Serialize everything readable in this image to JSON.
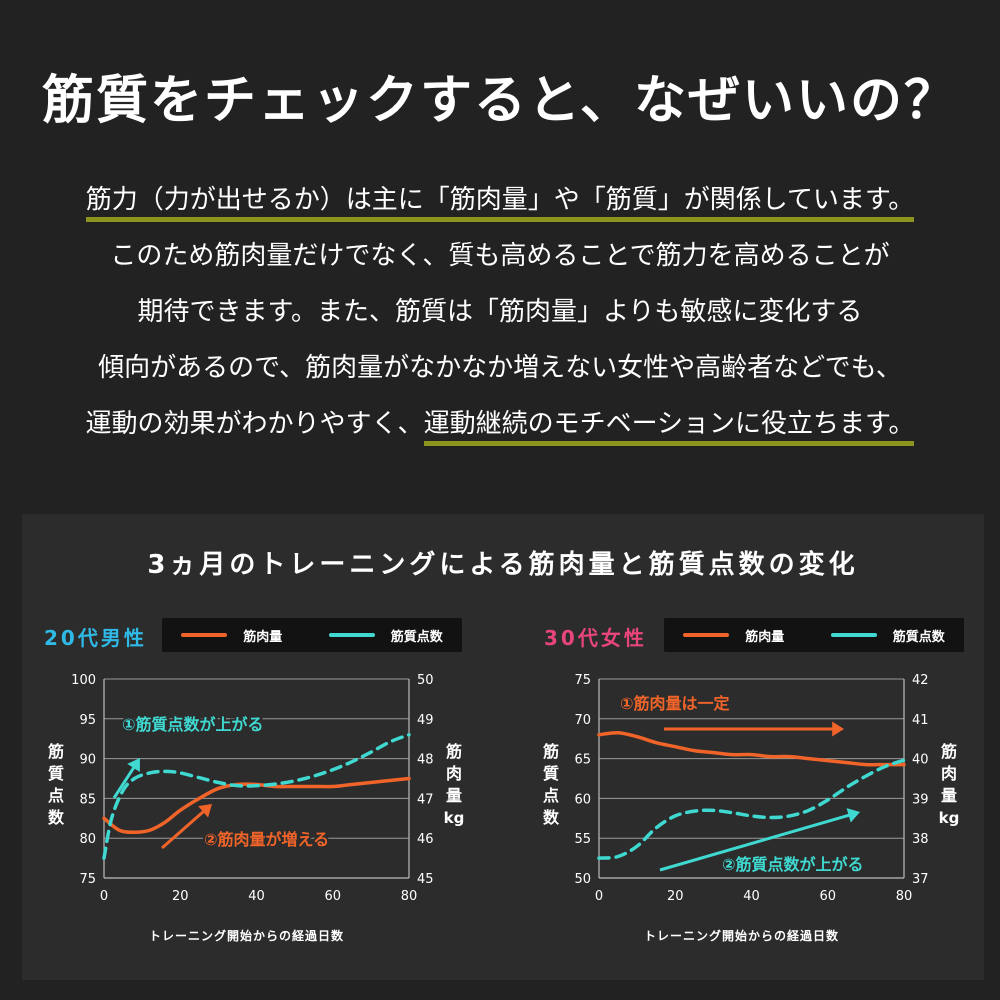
{
  "title": "筋質をチェックすると、なぜいいの？",
  "intro": {
    "line1_hl": "筋力（力が出せるか）は主に「筋肉量」や「筋質」が関係しています。",
    "line2": "このため筋肉量だけでなく、質も高めることで筋力を高めることが",
    "line3": "期待できます。また、筋質は「筋肉量」よりも敏感に変化する",
    "line4": "傾向があるので、筋肉量がなかなか増えない女性や高齢者などでも、",
    "line5_pre": "運動の効果がわかりやすく、",
    "line5_hl": "運動継続のモチベーションに役立ちます。"
  },
  "panel_title": "3ヵ月のトレーニングによる筋肉量と筋質点数の変化",
  "colors": {
    "muscle": "#f0642a",
    "quality": "#3fd9d1",
    "male_label": "#2fb9e6",
    "female_label": "#e8457a",
    "highlight": "#8d9420",
    "grid": "#9a9a9a"
  },
  "chart_data": [
    {
      "type": "line",
      "group_label": "20代男性",
      "legend": [
        "筋肉量",
        "筋質点数"
      ],
      "xlabel": "トレーニング開始からの経過日数",
      "ylabel_left": "筋質点数",
      "ylabel_right": "筋肉量",
      "ylabel_right_unit": "kg",
      "xlim": [
        0,
        80
      ],
      "ylim_left": [
        75,
        100
      ],
      "ylim_right": [
        45,
        50
      ],
      "x_ticks": [
        0,
        20,
        40,
        60,
        80
      ],
      "y_left_ticks": [
        75,
        80,
        85,
        90,
        95,
        100
      ],
      "y_right_ticks": [
        45,
        46,
        47,
        48,
        49,
        50
      ],
      "series": [
        {
          "name": "筋肉量",
          "axis": "right",
          "style": "solid",
          "x": [
            0,
            4,
            8,
            12,
            16,
            20,
            25,
            30,
            35,
            40,
            45,
            50,
            55,
            60,
            65,
            70,
            75,
            80
          ],
          "y": [
            46.5,
            46.2,
            46.15,
            46.2,
            46.4,
            46.7,
            47.0,
            47.25,
            47.35,
            47.35,
            47.3,
            47.3,
            47.3,
            47.3,
            47.35,
            47.4,
            47.45,
            47.5
          ]
        },
        {
          "name": "筋質点数",
          "axis": "left",
          "style": "dashed",
          "x": [
            0,
            2,
            5,
            8,
            12,
            16,
            20,
            25,
            30,
            35,
            40,
            45,
            50,
            55,
            60,
            65,
            70,
            75,
            80
          ],
          "y": [
            77.5,
            82.5,
            86.0,
            87.5,
            88.2,
            88.4,
            88.2,
            87.6,
            87.0,
            86.6,
            86.6,
            86.8,
            87.2,
            87.8,
            88.6,
            89.6,
            90.8,
            92.1,
            93.0
          ]
        }
      ],
      "annotations": [
        "①筋質点数が上がる",
        "②筋肉量が増える"
      ]
    },
    {
      "type": "line",
      "group_label": "30代女性",
      "legend": [
        "筋肉量",
        "筋質点数"
      ],
      "xlabel": "トレーニング開始からの経過日数",
      "ylabel_left": "筋質点数",
      "ylabel_right": "筋肉量",
      "ylabel_right_unit": "kg",
      "xlim": [
        0,
        80
      ],
      "ylim_left": [
        50,
        75
      ],
      "ylim_right": [
        37,
        42
      ],
      "x_ticks": [
        0,
        20,
        40,
        60,
        80
      ],
      "y_left_ticks": [
        50,
        55,
        60,
        65,
        70,
        75
      ],
      "y_right_ticks": [
        37,
        38,
        39,
        40,
        41,
        42
      ],
      "series": [
        {
          "name": "筋肉量",
          "axis": "right",
          "style": "solid",
          "x": [
            0,
            5,
            10,
            15,
            20,
            25,
            30,
            35,
            40,
            45,
            50,
            55,
            60,
            65,
            70,
            75,
            80
          ],
          "y": [
            40.6,
            40.65,
            40.55,
            40.4,
            40.3,
            40.2,
            40.15,
            40.1,
            40.1,
            40.05,
            40.05,
            40.0,
            39.95,
            39.9,
            39.85,
            39.85,
            39.85
          ]
        },
        {
          "name": "筋質点数",
          "axis": "left",
          "style": "dashed",
          "x": [
            0,
            5,
            10,
            15,
            20,
            25,
            30,
            35,
            40,
            45,
            50,
            55,
            60,
            65,
            70,
            75,
            80
          ],
          "y": [
            52.5,
            52.7,
            54.0,
            56.3,
            57.8,
            58.4,
            58.5,
            58.2,
            57.8,
            57.6,
            57.8,
            58.5,
            59.8,
            61.4,
            62.8,
            64.0,
            64.8
          ]
        }
      ],
      "annotations": [
        "①筋肉量は一定",
        "②筋質点数が上がる"
      ]
    }
  ]
}
